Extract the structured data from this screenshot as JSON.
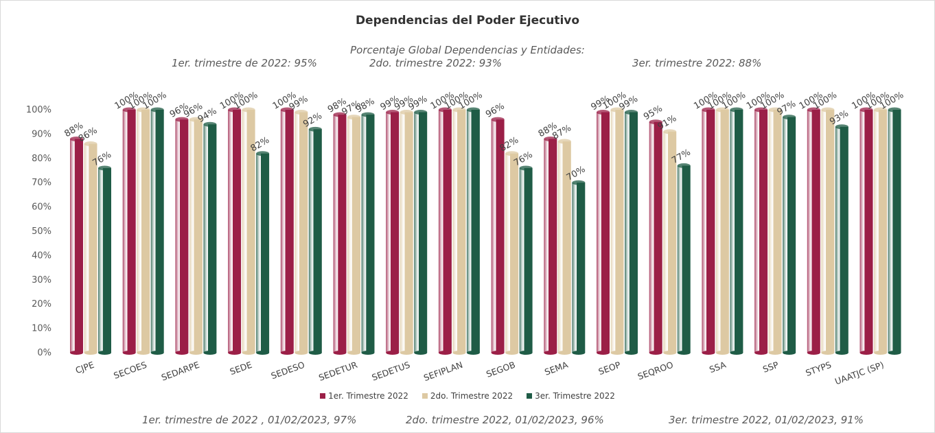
{
  "chart_data": {
    "type": "bar",
    "title": "Dependencias del Poder Ejecutivo",
    "subtitle": "Porcentaje Global  Dependencias y Entidades:",
    "header_notes": [
      "1er. trimestre  de 2022: 95%",
      "2do. trimestre 2022: 93%",
      "3er. trimestre 2022: 88%"
    ],
    "footer_notes": [
      "1er. trimestre  de 2022 , 01/02/2023, 97%",
      "2do. trimestre 2022, 01/02/2023, 96%",
      "3er. trimestre 2022, 01/02/2023, 91%"
    ],
    "categories": [
      "CJPE",
      "SECOES",
      "SEDARPE",
      "SEDE",
      "SEDESO",
      "SEDETUR",
      "SEDETUS",
      "SEFIPLAN",
      "SEGOB",
      "SEMA",
      "SEOP",
      "SEQROO",
      "SSA",
      "SSP",
      "STYPS",
      "UAATJC (SP)"
    ],
    "series": [
      {
        "name": "1er. Trimestre 2022",
        "color": "#9b1f47",
        "values": [
          88,
          100,
          96,
          100,
          100,
          98,
          99,
          100,
          96,
          88,
          99,
          95,
          100,
          100,
          100,
          100
        ]
      },
      {
        "name": "2do. Trimestre 2022",
        "color": "#ddc9a3",
        "values": [
          86,
          100,
          96,
          100,
          99,
          97,
          99,
          100,
          82,
          87,
          100,
          91,
          100,
          100,
          100,
          100
        ]
      },
      {
        "name": "3er. Trimestre 2022",
        "color": "#1f5c46",
        "values": [
          76,
          100,
          94,
          82,
          92,
          98,
          99,
          100,
          76,
          70,
          99,
          77,
          100,
          97,
          93,
          100
        ]
      }
    ],
    "yticks": [
      "0%",
      "10%",
      "20%",
      "30%",
      "40%",
      "50%",
      "60%",
      "70%",
      "80%",
      "90%",
      "100%"
    ],
    "ylim": [
      0,
      100
    ],
    "grid": false,
    "legend_position": "bottom"
  }
}
